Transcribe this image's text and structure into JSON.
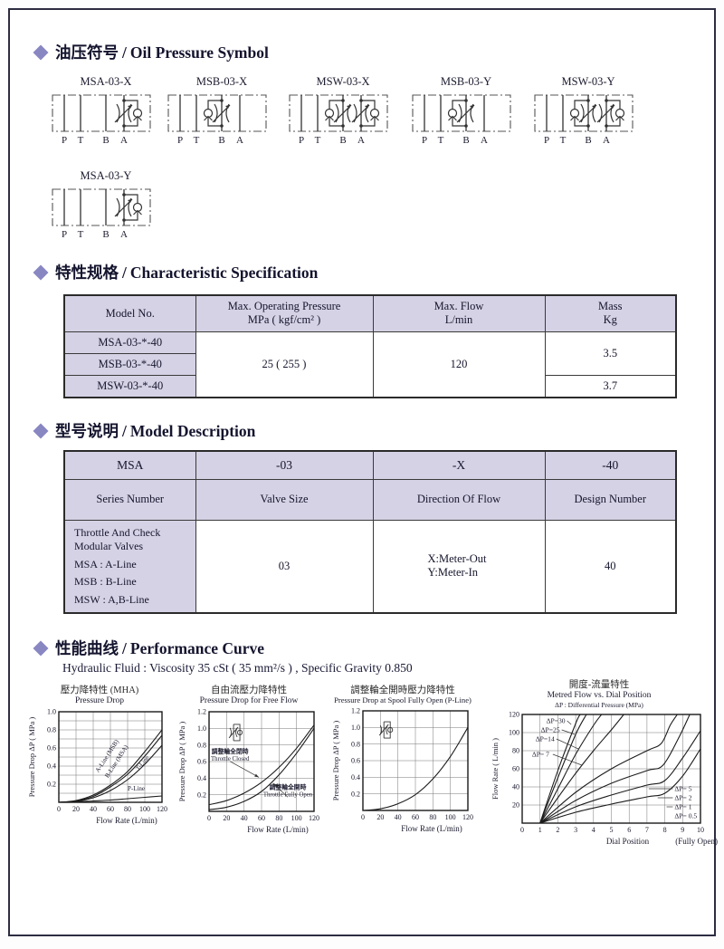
{
  "sections": {
    "symbols": {
      "zh": "油压符号",
      "en": "Oil Pressure Symbol"
    },
    "spec": {
      "zh": "特性规格",
      "en": "Characteristic Specification"
    },
    "model": {
      "zh": "型号说明",
      "en": "Model Description"
    },
    "performance": {
      "zh": "性能曲线",
      "en": "Performance Curve",
      "fluid": "Hydraulic Fluid : Viscosity 35 cSt ( 35 mm²/s ) , Specific Gravity 0.850"
    }
  },
  "accent_color": "#8987c2",
  "symbols": [
    {
      "label": "MSA-03-X",
      "ports": [
        "P",
        "T",
        "B",
        "A"
      ],
      "throttle_lines": [
        3
      ],
      "checks": [
        {
          "line": 3,
          "side": "right"
        }
      ]
    },
    {
      "label": "MSB-03-X",
      "ports": [
        "P",
        "T",
        "B",
        "A"
      ],
      "throttle_lines": [
        2
      ],
      "checks": [
        {
          "line": 2,
          "side": "left"
        }
      ]
    },
    {
      "label": "MSW-03-X",
      "ports": [
        "P",
        "T",
        "B",
        "A"
      ],
      "throttle_lines": [
        2,
        3
      ],
      "checks": [
        {
          "line": 2,
          "side": "left"
        },
        {
          "line": 3,
          "side": "right"
        }
      ]
    },
    {
      "label": "MSB-03-Y",
      "ports": [
        "P",
        "T",
        "B",
        "A"
      ],
      "throttle_lines": [
        2
      ],
      "checks": [
        {
          "line": 2,
          "side": "left"
        }
      ]
    },
    {
      "label": "MSW-03-Y",
      "ports": [
        "P",
        "T",
        "B",
        "A"
      ],
      "throttle_lines": [
        2,
        3
      ],
      "checks": [
        {
          "line": 2,
          "side": "left"
        },
        {
          "line": 3,
          "side": "right"
        }
      ]
    },
    {
      "label": "MSA-03-Y",
      "ports": [
        "P",
        "T",
        "B",
        "A"
      ],
      "throttle_lines": [
        3
      ],
      "checks": [
        {
          "line": 3,
          "side": "right"
        }
      ]
    }
  ],
  "spec_table": {
    "col_headers": [
      {
        "l1": "Model No.",
        "l2": ""
      },
      {
        "l1": "Max. Operating Pressure",
        "l2": "MPa ( kgf/cm² )"
      },
      {
        "l1": "Max. Flow",
        "l2": "L/min"
      },
      {
        "l1": "Mass",
        "l2": "Kg"
      }
    ],
    "models": [
      "MSA-03-*-40",
      "MSB-03-*-40",
      "MSW-03-*-40"
    ],
    "pressure": "25 ( 255 )",
    "flow": "120",
    "mass_ab": "3.5",
    "mass_w": "3.7"
  },
  "model_table": {
    "code_row": [
      "MSA",
      "-03",
      "-X",
      "-40"
    ],
    "meaning_row": [
      "Series Number",
      "Valve Size",
      "Direction Of Flow",
      "Design Number"
    ],
    "series_desc": [
      "Throttle And Check",
      "Modular Valves",
      "MSA : A-Line",
      "MSB : B-Line",
      "MSW : A,B-Line"
    ],
    "valve_size": "03",
    "flow_dir": [
      "X:Meter-Out",
      "Y:Meter-In"
    ],
    "design_no": "40"
  },
  "chart_data": [
    {
      "type": "line",
      "title_zh": "壓力降特性 (MHA)",
      "title_en": "Pressure Drop",
      "xlabel": "Flow Rate (L/min)",
      "ylabel": "Pressure Drop ΔP ( MPa )",
      "xlim": [
        0,
        120
      ],
      "ylim": [
        0,
        1.0
      ],
      "xticks": [
        0,
        20,
        40,
        60,
        80,
        100,
        120
      ],
      "yticks": [
        0.2,
        0.4,
        0.6,
        0.8,
        1.0
      ],
      "grid": {
        "x_step": 20,
        "y_step": 0.1
      },
      "series": [
        {
          "name": "A-Line (MSB)",
          "x": [
            0,
            20,
            40,
            60,
            80,
            100,
            120
          ],
          "y": [
            0,
            0.02,
            0.08,
            0.19,
            0.34,
            0.56,
            0.8
          ]
        },
        {
          "name": "B-Line (MSA)",
          "x": [
            0,
            20,
            40,
            60,
            80,
            100,
            120
          ],
          "y": [
            0,
            0.015,
            0.065,
            0.17,
            0.31,
            0.51,
            0.74
          ]
        },
        {
          "name": "T-Line",
          "x": [
            0,
            20,
            40,
            60,
            80,
            100,
            120
          ],
          "y": [
            0,
            0.01,
            0.05,
            0.13,
            0.25,
            0.42,
            0.63
          ]
        },
        {
          "name": "P-Line",
          "x": [
            0,
            20,
            40,
            60,
            80,
            100,
            120
          ],
          "y": [
            0,
            0.005,
            0.015,
            0.025,
            0.04,
            0.055,
            0.07
          ]
        }
      ],
      "rot_labels": [
        {
          "text": "A-Line (MSB)",
          "x": 58,
          "y": 0.5,
          "rotate": -57
        },
        {
          "text": "B-Line (MSA)",
          "x": 69,
          "y": 0.44,
          "rotate": -57
        },
        {
          "text": "T-Line",
          "x": 99,
          "y": 0.42,
          "rotate": -50
        },
        {
          "text": "P-Line",
          "x": 90,
          "y": 0.13,
          "rotate": 0
        }
      ]
    },
    {
      "type": "line",
      "title_zh": "自由流壓力降特性",
      "title_en": "Pressure Drop for Free Flow",
      "xlabel": "Flow Rate (L/min)",
      "ylabel": "Pressure Drop ΔP ( MPa )",
      "xlim": [
        0,
        120
      ],
      "ylim": [
        0,
        1.2
      ],
      "xticks": [
        0,
        20,
        40,
        60,
        80,
        100,
        120
      ],
      "yticks": [
        0.2,
        0.4,
        0.6,
        0.8,
        1.0,
        1.2
      ],
      "grid": {
        "x_step": 20,
        "y_step": 0.2
      },
      "series": [
        {
          "name": "Throttle Closed",
          "x": [
            0,
            20,
            40,
            60,
            80,
            100,
            120
          ],
          "y": [
            0.08,
            0.13,
            0.22,
            0.35,
            0.53,
            0.76,
            1.04
          ]
        },
        {
          "name": "Throttle Fully Open",
          "x": [
            0,
            20,
            40,
            60,
            80,
            100,
            120
          ],
          "y": [
            0.02,
            0.05,
            0.12,
            0.24,
            0.44,
            0.7,
            1.0
          ]
        }
      ],
      "ann_labels": [
        {
          "lines": [
            "調整輪全閉時",
            "Throttle Closed"
          ],
          "x": 24,
          "y": 0.7,
          "arrow": [
            57,
            0.41
          ]
        },
        {
          "lines": [
            "調整輪全開時",
            "Throttle Fully Open"
          ],
          "x": 90,
          "y": 0.27,
          "arrow": [
            73,
            0.34
          ]
        }
      ],
      "icon": {
        "x": 28,
        "y": 0.95
      }
    },
    {
      "type": "line",
      "title_zh": "調整輪全開時壓力降特性",
      "title_en": "Pressure Drop at Spool Fully Open (P-Line)",
      "xlabel": "Flow Rate (L/min)",
      "ylabel": "Pressure Drop ΔP ( MPa )",
      "xlim": [
        0,
        120
      ],
      "ylim": [
        0,
        1.2
      ],
      "xticks": [
        0,
        20,
        40,
        60,
        80,
        100,
        120
      ],
      "yticks": [
        0.2,
        0.4,
        0.6,
        0.8,
        1.0,
        1.2
      ],
      "grid": {
        "x_step": 20,
        "y_step": 0.2
      },
      "series": [
        {
          "name": "P-Line Fully Open",
          "x": [
            0,
            20,
            40,
            60,
            80,
            100,
            120
          ],
          "y": [
            0,
            0.02,
            0.08,
            0.19,
            0.38,
            0.65,
            1.0
          ]
        }
      ],
      "ann_labels": [],
      "icon": {
        "x": 24,
        "y": 0.97
      }
    },
    {
      "type": "line",
      "title_zh": "開度-流量特性",
      "title_en": "Metred Flow vs. Dial Position",
      "title_note": "ΔP : Differential Pressure (MPa)",
      "xlabel": "Dial Position",
      "xnote": "(Fully Open)",
      "ylabel": "Flow Rate ( L/min )",
      "xlim": [
        0,
        10
      ],
      "ylim": [
        0,
        120
      ],
      "xticks": [
        0,
        1,
        2,
        3,
        4,
        5,
        6,
        7,
        8,
        9,
        10
      ],
      "yticks": [
        20,
        40,
        60,
        80,
        100,
        120
      ],
      "grid": {
        "x_step": 1,
        "y_step": 20
      },
      "series": [
        {
          "name": "ΔP=30",
          "x": [
            1,
            2,
            3,
            3.25
          ],
          "y": [
            0,
            58,
            110,
            120
          ]
        },
        {
          "name": "ΔP=25",
          "x": [
            1,
            2,
            3,
            3.6
          ],
          "y": [
            0,
            50,
            98,
            120
          ]
        },
        {
          "name": "ΔP=14",
          "x": [
            1,
            2,
            3,
            4,
            4.45
          ],
          "y": [
            0,
            38,
            76,
            108,
            120
          ]
        },
        {
          "name": "ΔP=7",
          "x": [
            1,
            2,
            3,
            4,
            5,
            5.7
          ],
          "y": [
            0,
            28,
            55,
            80,
            103,
            120
          ]
        },
        {
          "name": "ΔP=5",
          "x": [
            1,
            3,
            5,
            7,
            7.8,
            8.3,
            8.7
          ],
          "y": [
            0,
            34,
            60,
            80,
            88,
            108,
            120
          ]
        },
        {
          "name": "ΔP=2",
          "x": [
            1,
            3,
            5,
            7,
            7.9,
            8.8,
            9.4
          ],
          "y": [
            0,
            25,
            44,
            58,
            64,
            95,
            120
          ]
        },
        {
          "name": "ΔP=1",
          "x": [
            1,
            3,
            5,
            7,
            8,
            9,
            10
          ],
          "y": [
            0,
            18,
            31,
            42,
            47,
            72,
            102
          ]
        },
        {
          "name": "ΔP=0.5",
          "x": [
            1,
            3,
            5,
            7,
            8,
            9,
            10
          ],
          "y": [
            0,
            12,
            21,
            29,
            33,
            52,
            82
          ]
        }
      ],
      "lead_labels": [
        {
          "text": "ΔP=30",
          "tx": 1.35,
          "ty": 113,
          "lx": 2.75,
          "ly": 109,
          "anchor": "start"
        },
        {
          "text": "ΔP=25",
          "tx": 1.05,
          "ty": 103,
          "lx": 2.95,
          "ly": 98,
          "anchor": "start"
        },
        {
          "text": "ΔP=14",
          "tx": 0.75,
          "ty": 93,
          "lx": 3.15,
          "ly": 82,
          "anchor": "start"
        },
        {
          "text": "ΔP= 7",
          "tx": 0.55,
          "ty": 76,
          "lx": 3.35,
          "ly": 64,
          "anchor": "start"
        },
        {
          "text": "ΔP= 5",
          "tx": 8.55,
          "ty": 38,
          "lx": 7.1,
          "ly": 38,
          "anchor": "start"
        },
        {
          "text": "ΔP= 2",
          "tx": 8.55,
          "ty": 28,
          "lx": 7.6,
          "ly": 28,
          "anchor": "start"
        },
        {
          "text": "ΔP= 1",
          "tx": 8.55,
          "ty": 18,
          "lx": 8.1,
          "ly": 18,
          "anchor": "start"
        },
        {
          "text": "ΔP= 0.5",
          "tx": 8.55,
          "ty": 8,
          "lx": 8.45,
          "ly": 8,
          "anchor": "start"
        }
      ]
    }
  ]
}
